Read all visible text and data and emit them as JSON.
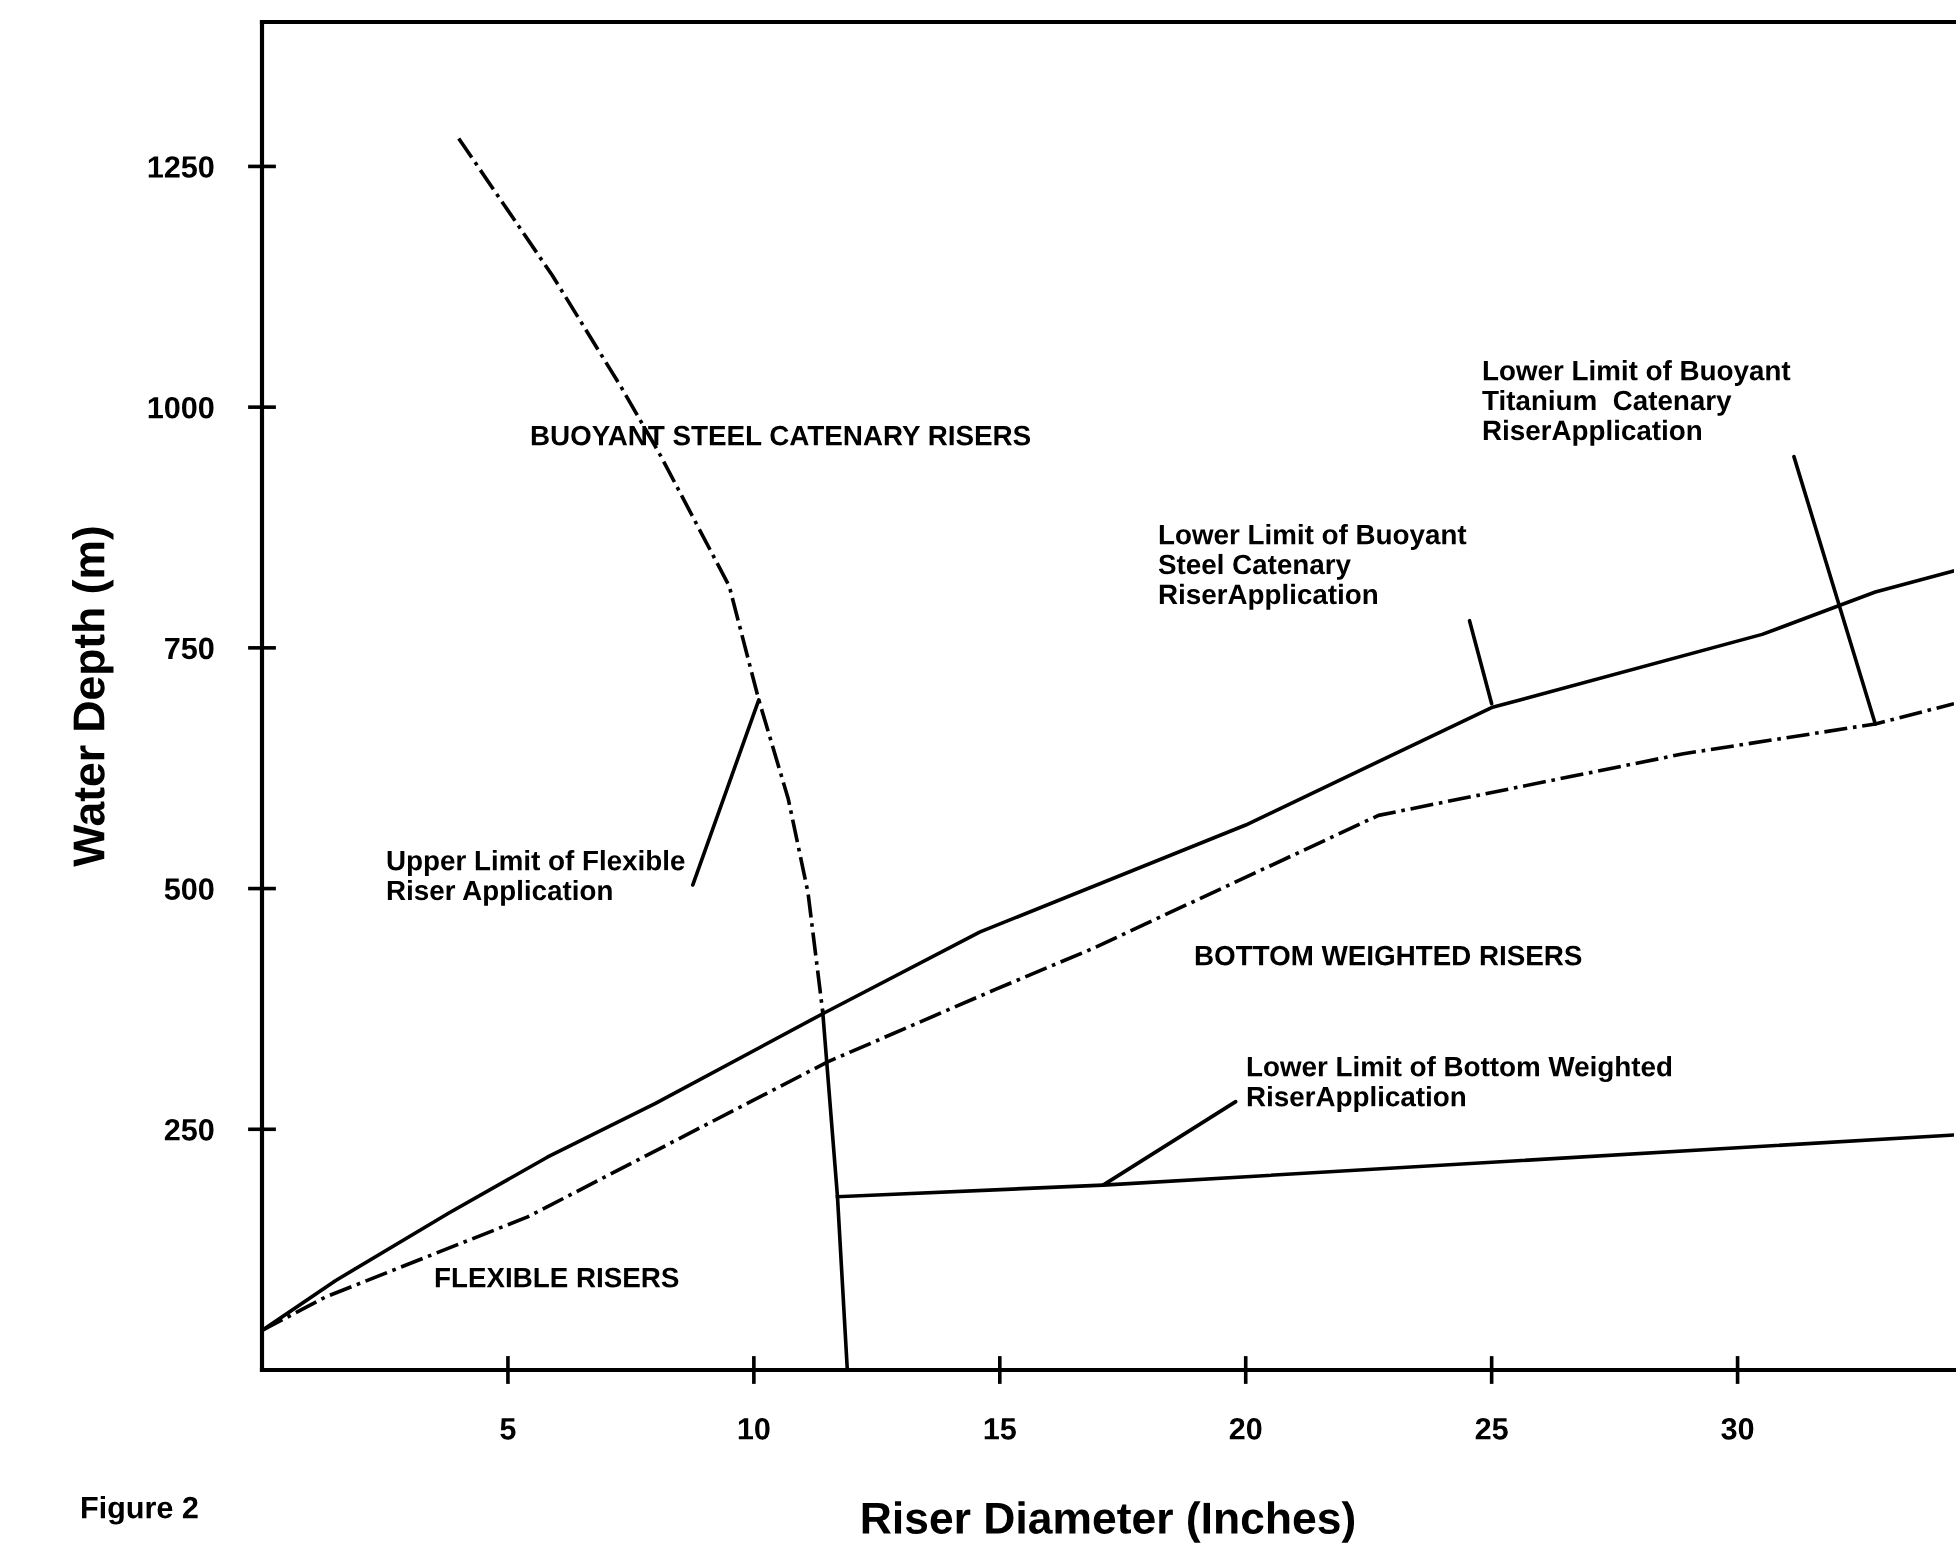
{
  "chart_data": {
    "type": "line",
    "xlabel": "Riser Diameter (Inches)",
    "ylabel": "Water Depth (m)",
    "xlim": [
      0,
      34.4
    ],
    "ylim": [
      0,
      1400
    ],
    "xticks": [
      5,
      10,
      15,
      20,
      25,
      30
    ],
    "yticks": [
      250,
      500,
      750,
      1000,
      1250
    ],
    "grid": false,
    "legend": false,
    "marker": "none",
    "series": [
      {
        "color": "#000000",
        "line_style": "dotted",
        "x": [
          4.0,
          5.9,
          7.3,
          8.1,
          9.5,
          10.1,
          10.7,
          11.1,
          11.4
        ],
        "values": [
          1279,
          1137,
          1021,
          950,
          814,
          696,
          593,
          496,
          372
        ]
      },
      {
        "color": "#000000",
        "line_style": "solid",
        "x": [
          11.4,
          11.7,
          11.9
        ],
        "values": [
          372,
          180,
          0
        ]
      },
      {
        "color": "#000000",
        "line_style": "solid",
        "x": [
          11.7,
          17.1,
          34.4
        ],
        "values": [
          180,
          192,
          244
        ]
      },
      {
        "color": "#000000",
        "line_style": "solid",
        "x": [
          0,
          1.5,
          3.8,
          5.8,
          8.0,
          11.4,
          14.6,
          20.0,
          25.0,
          30.5,
          32.8,
          34.4
        ],
        "values": [
          41,
          93,
          163,
          221,
          277,
          370,
          455,
          566,
          688,
          764,
          808,
          830
        ]
      },
      {
        "color": "#000000",
        "line_style": "dotted",
        "x": [
          0,
          1.3,
          5.4,
          11.5,
          14.9,
          16.9,
          22.7,
          28.9,
          32.8,
          34.4
        ],
        "values": [
          41,
          76,
          159,
          320,
          395,
          438,
          576,
          640,
          671,
          692
        ]
      }
    ],
    "annotations": [
      {
        "text": "Upper Limit of Flexible\nRiser Application",
        "x": 10.1,
        "y": 696
      },
      {
        "text": "Lower Limit of Buoyant\nSteel Catenary\nRiserApplication",
        "x": 25.0,
        "y": 692
      },
      {
        "text": "Lower Limit of Buoyant\nTitanium  Catenary\nRiserApplication",
        "x": 32.8,
        "y": 671
      },
      {
        "text": "Lower Limit of Bottom Weighted\nRiserApplication",
        "x": 17.1,
        "y": 192
      },
      "BUOYANT STEEL CATENARY RISERS",
      "BOTTOM WEIGHTED RISERS",
      "FLEXIBLE RISERS",
      "Figure 2"
    ]
  }
}
